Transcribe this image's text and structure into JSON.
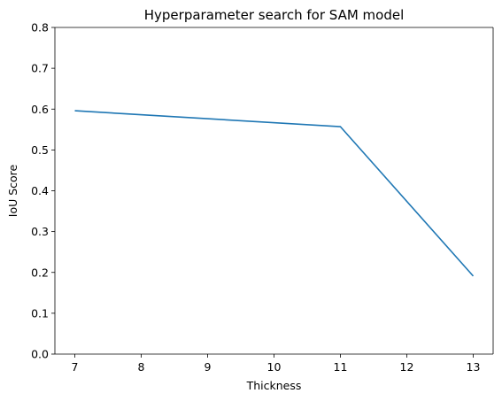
{
  "chart_data": {
    "type": "line",
    "title": "Hyperparameter search for SAM model",
    "xlabel": "Thickness",
    "ylabel": "IoU Score",
    "xlim": [
      6.7,
      13.3
    ],
    "ylim": [
      0,
      0.8
    ],
    "xticks": [
      7,
      8,
      9,
      10,
      11,
      12,
      13
    ],
    "xtick_labels": [
      "7",
      "8",
      "9",
      "10",
      "11",
      "12",
      "13"
    ],
    "yticks": [
      0.0,
      0.1,
      0.2,
      0.3,
      0.4,
      0.5,
      0.6,
      0.7,
      0.8
    ],
    "ytick_labels": [
      "0.0",
      "0.1",
      "0.2",
      "0.3",
      "0.4",
      "0.5",
      "0.6",
      "0.7",
      "0.8"
    ],
    "grid": false,
    "legend": "none",
    "series": [
      {
        "x": [
          7,
          11,
          13
        ],
        "values": [
          0.596,
          0.557,
          0.191
        ],
        "color": "#1f77b4"
      }
    ]
  }
}
